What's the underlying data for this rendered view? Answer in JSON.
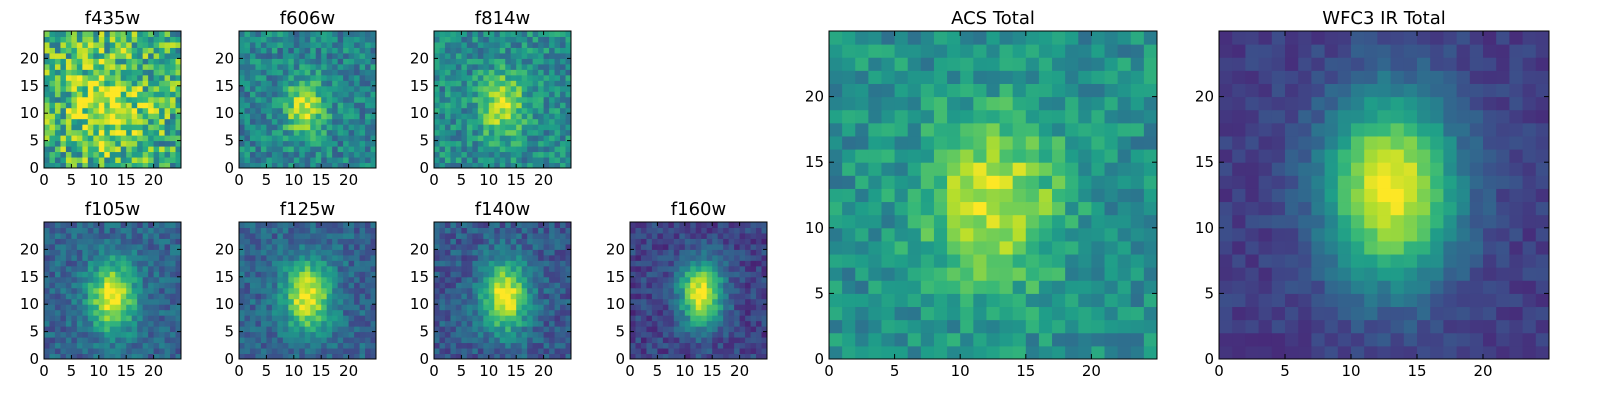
{
  "chart_data": [
    {
      "type": "heatmap",
      "title": "f435w",
      "colormap": "viridis",
      "grid": false,
      "extent": [
        0,
        25
      ],
      "xticks": [
        "0",
        "5",
        "10",
        "15",
        "20"
      ],
      "yticks": [
        "0",
        "5",
        "10",
        "15",
        "20"
      ],
      "peak": [
        11.5,
        11.5
      ],
      "spread": [
        5,
        6
      ],
      "noise": 0.6,
      "base": 0.62,
      "amp": 0.3,
      "seed": 11
    },
    {
      "type": "heatmap",
      "title": "f606w",
      "colormap": "viridis",
      "grid": false,
      "extent": [
        0,
        25
      ],
      "xticks": [
        "0",
        "5",
        "10",
        "15",
        "20"
      ],
      "yticks": [
        "0",
        "5",
        "10",
        "15",
        "20"
      ],
      "peak": [
        12,
        11
      ],
      "spread": [
        2.5,
        3.5
      ],
      "noise": 0.35,
      "base": 0.45,
      "amp": 0.52,
      "seed": 23
    },
    {
      "type": "heatmap",
      "title": "f814w",
      "colormap": "viridis",
      "grid": false,
      "extent": [
        0,
        25
      ],
      "xticks": [
        "0",
        "5",
        "10",
        "15",
        "20"
      ],
      "yticks": [
        "0",
        "5",
        "10",
        "15",
        "20"
      ],
      "peak": [
        12.5,
        11.5
      ],
      "spread": [
        2.8,
        4
      ],
      "noise": 0.35,
      "base": 0.48,
      "amp": 0.45,
      "seed": 37
    },
    {
      "type": "heatmap",
      "title": "f105w",
      "colormap": "viridis",
      "grid": false,
      "extent": [
        0,
        25
      ],
      "xticks": [
        "0",
        "5",
        "10",
        "15",
        "20"
      ],
      "yticks": [
        "0",
        "5",
        "10",
        "15",
        "20"
      ],
      "peak": [
        12.5,
        11.5
      ],
      "spread": [
        3,
        4.5
      ],
      "noise": 0.25,
      "base": 0.32,
      "amp": 0.68,
      "seed": 41
    },
    {
      "type": "heatmap",
      "title": "f125w",
      "colormap": "viridis",
      "grid": false,
      "extent": [
        0,
        25
      ],
      "xticks": [
        "0",
        "5",
        "10",
        "15",
        "20"
      ],
      "yticks": [
        "0",
        "5",
        "10",
        "15",
        "20"
      ],
      "peak": [
        12.5,
        11.5
      ],
      "spread": [
        3,
        4.5
      ],
      "noise": 0.25,
      "base": 0.32,
      "amp": 0.68,
      "seed": 53
    },
    {
      "type": "heatmap",
      "title": "f140w",
      "colormap": "viridis",
      "grid": false,
      "extent": [
        0,
        25
      ],
      "xticks": [
        "0",
        "5",
        "10",
        "15",
        "20"
      ],
      "yticks": [
        "0",
        "5",
        "10",
        "15",
        "20"
      ],
      "peak": [
        13,
        11.5
      ],
      "spread": [
        3,
        4.5
      ],
      "noise": 0.25,
      "base": 0.28,
      "amp": 0.72,
      "seed": 67
    },
    {
      "type": "heatmap",
      "title": "f160w",
      "colormap": "viridis",
      "grid": false,
      "extent": [
        0,
        25
      ],
      "xticks": [
        "0",
        "5",
        "10",
        "15",
        "20"
      ],
      "yticks": [
        "0",
        "5",
        "10",
        "15",
        "20"
      ],
      "peak": [
        13,
        12
      ],
      "spread": [
        2.8,
        4.2
      ],
      "noise": 0.22,
      "base": 0.2,
      "amp": 0.8,
      "seed": 71
    },
    {
      "type": "heatmap",
      "title": "ACS Total",
      "colormap": "viridis",
      "grid": false,
      "extent": [
        0,
        25
      ],
      "xticks": [
        "0",
        "5",
        "10",
        "15",
        "20"
      ],
      "yticks": [
        "0",
        "5",
        "10",
        "15",
        "20"
      ],
      "peak": [
        12.5,
        12
      ],
      "spread": [
        3.5,
        4.5
      ],
      "noise": 0.28,
      "base": 0.5,
      "amp": 0.45,
      "seed": 83
    },
    {
      "type": "heatmap",
      "title": "WFC3 IR Total",
      "colormap": "viridis",
      "grid": false,
      "extent": [
        0,
        25
      ],
      "xticks": [
        "0",
        "5",
        "10",
        "15",
        "20"
      ],
      "yticks": [
        "0",
        "5",
        "10",
        "15",
        "20"
      ],
      "peak": [
        13,
        13
      ],
      "spread": [
        3.5,
        5
      ],
      "noise": 0.12,
      "base": 0.18,
      "amp": 0.82,
      "seed": 97
    }
  ]
}
